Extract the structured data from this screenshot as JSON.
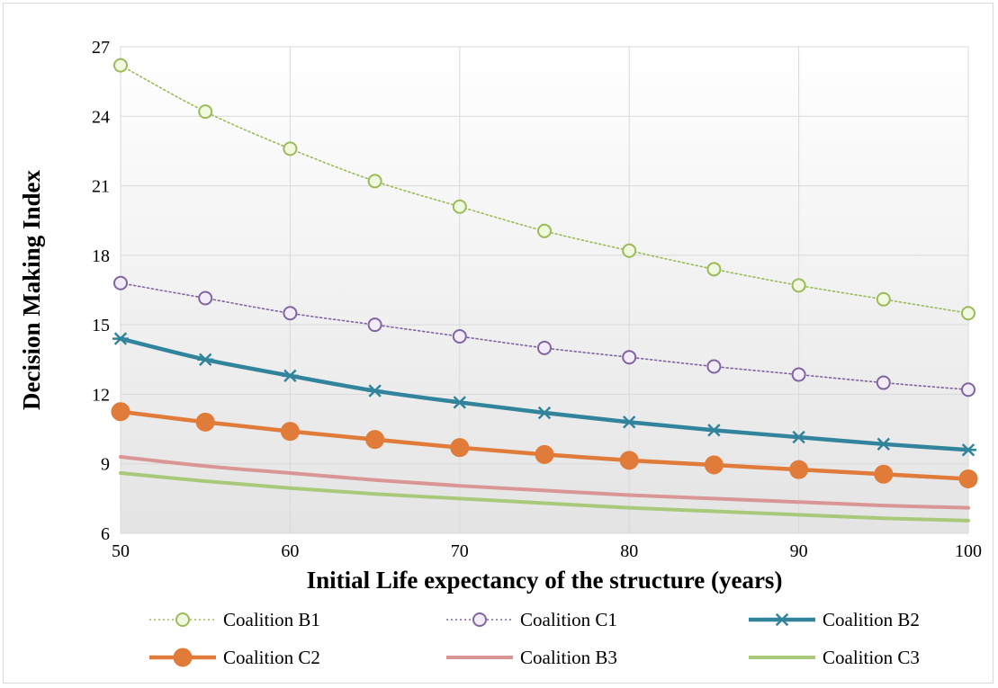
{
  "chart_data": {
    "type": "line",
    "xlabel": "Initial Life expectancy of the structure (years)",
    "ylabel": "Decision Making Index",
    "xlim": [
      50,
      100
    ],
    "ylim": [
      6,
      27
    ],
    "xticks": [
      50,
      60,
      70,
      80,
      90,
      100
    ],
    "yticks": [
      6,
      9,
      12,
      15,
      18,
      21,
      24,
      27
    ],
    "grid": "vertical and horizontal",
    "legend_position": "bottom",
    "x": [
      50,
      55,
      60,
      65,
      70,
      75,
      80,
      85,
      90,
      95,
      100
    ],
    "series": [
      {
        "name": "Coalition B1",
        "values": [
          26.2,
          24.2,
          22.6,
          21.2,
          20.1,
          19.05,
          18.2,
          17.4,
          16.7,
          16.1,
          15.5
        ],
        "color": "#9bbb59",
        "style": "dotted",
        "marker": "circle-open-green"
      },
      {
        "name": "Coalition C1",
        "values": [
          16.8,
          16.15,
          15.5,
          15.0,
          14.5,
          14.0,
          13.6,
          13.2,
          12.85,
          12.5,
          12.2
        ],
        "color": "#8064a2",
        "style": "dotted",
        "marker": "circle-open-purple"
      },
      {
        "name": "Coalition B2",
        "values": [
          14.4,
          13.5,
          12.8,
          12.15,
          11.65,
          11.2,
          10.8,
          10.45,
          10.15,
          9.85,
          9.6
        ],
        "color": "#31849b",
        "style": "solid-thick",
        "marker": "star"
      },
      {
        "name": "Coalition C2",
        "values": [
          11.25,
          10.8,
          10.4,
          10.05,
          9.7,
          9.4,
          9.15,
          8.95,
          8.75,
          8.55,
          8.35
        ],
        "color": "#e07b39",
        "style": "solid-thick",
        "marker": "circle-filled"
      },
      {
        "name": "Coalition B3",
        "values": [
          9.3,
          8.9,
          8.6,
          8.3,
          8.05,
          7.85,
          7.65,
          7.5,
          7.35,
          7.2,
          7.1
        ],
        "color": "#d99694",
        "style": "solid",
        "marker": "none"
      },
      {
        "name": "Coalition C3",
        "values": [
          8.6,
          8.25,
          7.95,
          7.7,
          7.5,
          7.3,
          7.1,
          6.95,
          6.8,
          6.65,
          6.55
        ],
        "color": "#a9c97a",
        "style": "solid",
        "marker": "none"
      }
    ]
  }
}
